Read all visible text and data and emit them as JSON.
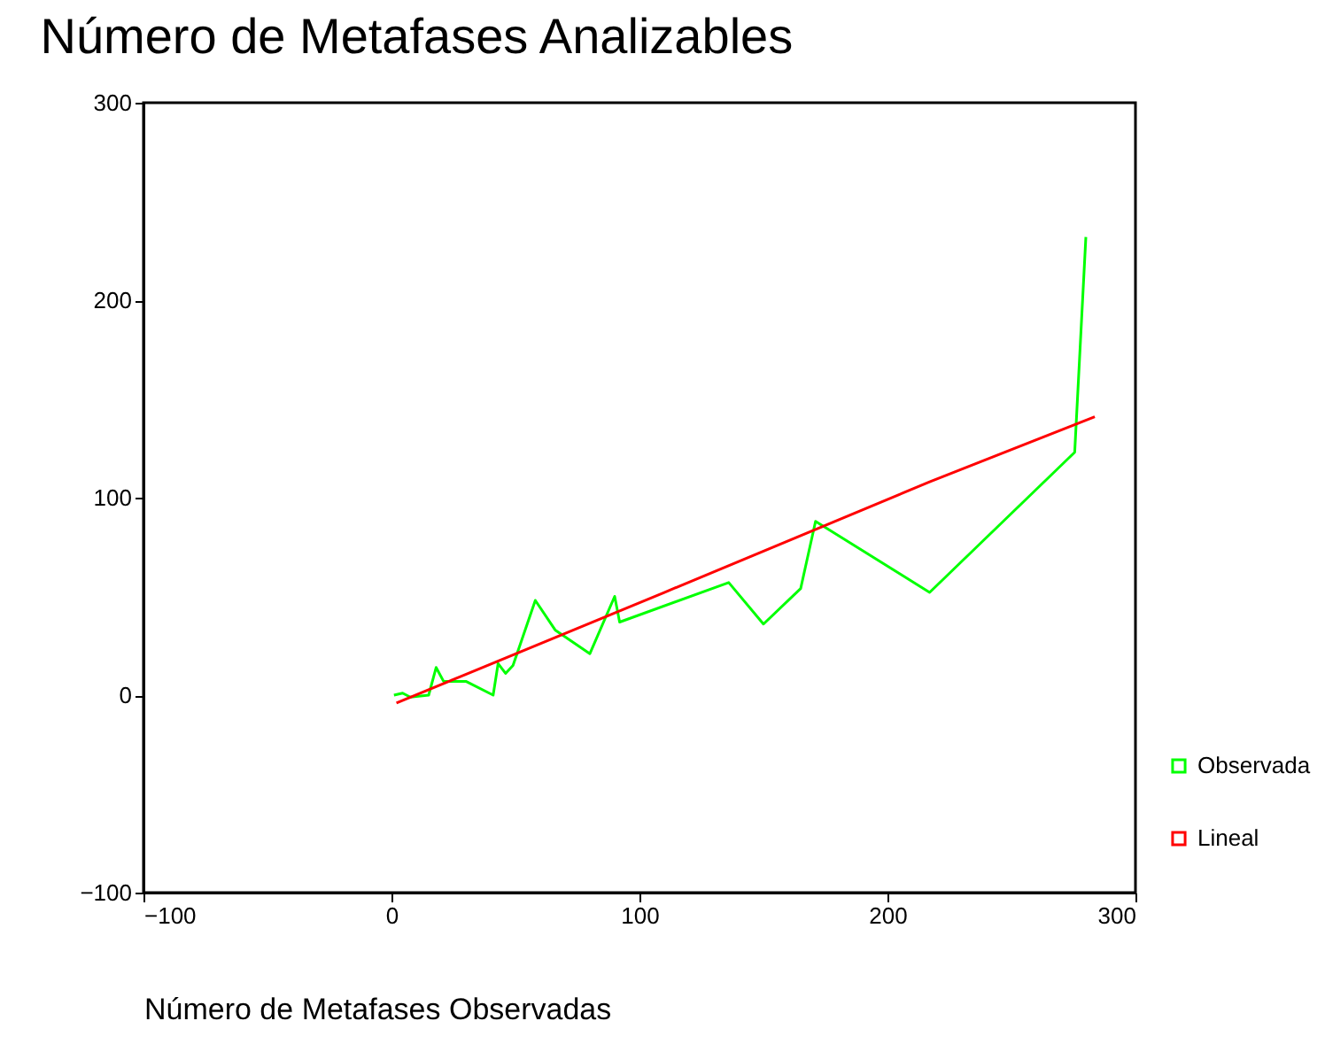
{
  "chart_data": {
    "type": "line",
    "title": "Número de Metafases Analizables",
    "xlabel": "Número de Metafases Observadas",
    "xlim": [
      -100,
      300
    ],
    "xticks": [
      -100,
      0,
      100,
      200,
      300
    ],
    "ylim": [
      -100,
      300
    ],
    "yticks": [
      -100,
      0,
      100,
      200,
      300
    ],
    "grid": false,
    "legend": "bottom right",
    "line_style": "solid",
    "series": [
      {
        "name": "Observada",
        "color": "#00ff00",
        "x": [
          1,
          4.5,
          7.6,
          15,
          18,
          21,
          30,
          41,
          43,
          46,
          49,
          58,
          66,
          80,
          90,
          92,
          136,
          150,
          165,
          171,
          217,
          275.5,
          280
        ],
        "values": [
          0,
          1,
          -1,
          0,
          14,
          7,
          7,
          0,
          16,
          11,
          15,
          48,
          33,
          21,
          50,
          37,
          57,
          36,
          54,
          88,
          52,
          123,
          232
        ]
      },
      {
        "name": "Lineal",
        "color": "#ff0000",
        "x": [
          2,
          110,
          217,
          283.6
        ],
        "values": [
          -4,
          52,
          108,
          141
        ]
      }
    ]
  }
}
